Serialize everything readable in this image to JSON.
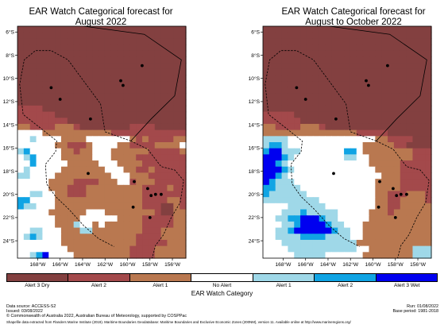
{
  "maps": [
    {
      "title": "EAR Watch Categorical forecast for\nAugust 2022",
      "grid": [
        "999999999999999999999999999",
        "999999999999999999999999999",
        "999999999999999999999999999",
        "999999999999999999999999999",
        "999999999999999999999999999",
        "999999999999999999999999999",
        "999999999999999999999999999",
        "999999999999999999999999999",
        "999999999999999999999999999",
        "999999999999999999999999999",
        "999999999999999999999999999",
        "999999999999999999999999999",
        "999999999999999999999999999",
        "888899999999999999999999999",
        "888888999999999999999999999",
        "888888889999999999999999999",
        "778888777899999999888899999",
        "000077777777777888888888888",
        "001000077770000000787888877",
        "000000778887000077888877770",
        "120000077877000777777888887",
        "012000077777000777788888888",
        "002000007777700077778888888",
        "010000077777770007788788888",
        "110000777777777000777888888",
        "000007777888877700877788888",
        "000007778887777777778888788",
        "001100778887777777778888888",
        "220000777777777777778888778",
        "211000777777777777778889978",
        "000007777770007777777789977",
        "000000777700000077778888877",
        "000000777100707777778888877",
        "001100077711777777778887777",
        "012100077777777777788887777",
        "000000077777777777788888777",
        "000000007777777777888877777",
        "001230000777777777888877777"
      ],
      "dots": [
        {
          "lon": 158.7,
          "lat": 8.9
        },
        {
          "lon": 160.6,
          "lat": 10.2
        },
        {
          "lon": 160.4,
          "lat": 10.6
        },
        {
          "lon": 166.8,
          "lat": 10.8
        },
        {
          "lon": 166.0,
          "lat": 11.8
        },
        {
          "lon": 163.3,
          "lat": 13.5
        },
        {
          "lon": 163.5,
          "lat": 18.2
        },
        {
          "lon": 159.4,
          "lat": 18.9
        },
        {
          "lon": 158.2,
          "lat": 19.5
        },
        {
          "lon": 157.9,
          "lat": 20.1
        },
        {
          "lon": 157.5,
          "lat": 20.0
        },
        {
          "lon": 157.0,
          "lat": 20.0
        },
        {
          "lon": 159.5,
          "lat": 21.1
        },
        {
          "lon": 158.0,
          "lat": 22.0
        }
      ]
    },
    {
      "title": "EAR Watch Categorical forecast for\nAugust to October 2022",
      "grid": [
        "999999999999999999999999999",
        "999999999999999999999999999",
        "999999999999999999999999999",
        "999999999999999999999999999",
        "999999999999999999999999999",
        "999999999999999999999999999",
        "999999999999999999999999999",
        "999999999999999999999999999",
        "999999999999999999999999999",
        "999999999999999999999999999",
        "999999999999999999999999999",
        "999999999999999999999999999",
        "999999999999999999999999999",
        "999999999999999999999999999",
        "888889999999999999999999999",
        "888888999999999999999999999",
        "778888777899999999999999999",
        "777777777777777888889999999",
        "111100000000000000778888999",
        "122100000000000077777889999",
        "233111000000022077777777888",
        "333210000000011007777777888",
        "332100000000000007777788888",
        "333210000000000000777788888",
        "332100000000000000077788888",
        "321110000000000000777788888",
        "221111000000000000777788888",
        "211111100000000000778887778",
        "111111111000000000778877778",
        "000011111100000000778877777",
        "000111211111000007778777777",
        "001122333211000007777777777",
        "000112333321100077777777777",
        "001123333332110077777777777",
        "001111222211110077777777777",
        "000111111111111777777777777",
        "000011111111111007777777111",
        "000001111100000077777777111"
      ],
      "dots": [
        {
          "lon": 158.7,
          "lat": 8.9
        },
        {
          "lon": 160.6,
          "lat": 10.2
        },
        {
          "lon": 160.4,
          "lat": 10.6
        },
        {
          "lon": 166.8,
          "lat": 10.8
        },
        {
          "lon": 166.0,
          "lat": 11.8
        },
        {
          "lon": 163.3,
          "lat": 13.5
        },
        {
          "lon": 163.5,
          "lat": 18.2
        },
        {
          "lon": 159.4,
          "lat": 18.9
        },
        {
          "lon": 158.2,
          "lat": 19.5
        },
        {
          "lon": 157.9,
          "lat": 20.1
        },
        {
          "lon": 157.5,
          "lat": 20.0
        },
        {
          "lon": 157.0,
          "lat": 20.0
        },
        {
          "lon": 159.5,
          "lat": 21.1
        },
        {
          "lon": 158.0,
          "lat": 22.0
        }
      ]
    }
  ],
  "axes": {
    "lat_ticks": [
      "6°S",
      "8°S",
      "10°S",
      "12°S",
      "14°S",
      "16°S",
      "18°S",
      "20°S",
      "22°S",
      "24°S"
    ],
    "lon_ticks": [
      "168°W",
      "166°W",
      "164°W",
      "162°W",
      "160°W",
      "158°W",
      "156°W"
    ]
  },
  "categories": [
    {
      "code": "0",
      "label": "No Alert",
      "color": "#ffffff"
    },
    {
      "code": "1",
      "label": "Alert 1",
      "color": "#9fd8e8"
    },
    {
      "code": "2",
      "label": "Alert 2",
      "color": "#10a4e4"
    },
    {
      "code": "3",
      "label": "Alert 3 Wet",
      "color": "#0000f0"
    },
    {
      "code": "7",
      "label": "Alert 1",
      "color": "#b97850"
    },
    {
      "code": "8",
      "label": "Alert 2",
      "color": "#a3494b"
    },
    {
      "code": "9",
      "label": "Alert 3 Dry",
      "color": "#834040"
    }
  ],
  "legend": {
    "title": "EAR Watch Category",
    "items": [
      {
        "label": "Alert 3 Dry",
        "color": "#834040"
      },
      {
        "label": "Alert 2",
        "color": "#a3494b"
      },
      {
        "label": "Alert 1",
        "color": "#b97850"
      },
      {
        "label": "No Alert",
        "color": "#ffffff"
      },
      {
        "label": "Alert 1",
        "color": "#9fd8e8"
      },
      {
        "label": "Alert 2",
        "color": "#10a4e4"
      },
      {
        "label": "Alert 3 Wet",
        "color": "#0000f0"
      }
    ]
  },
  "footer": {
    "data_source": "Data source: ACCESS-S2",
    "issued": "Issued: 03/08/2022",
    "run": "Run: 01/08/2022",
    "base_period": "Base period: 1981-2018",
    "copyright": "© Commonwealth of Australia 2022, Australian Bureau of Meteorology, supported by COSPPac",
    "shapefile": "Shapefile data extracted from Flanders Marine Institute (2019). Maritime Boundaries Geodatabase: Maritime Boundaries and Exclusive Economic Zones (200NM), version 11. Available online at http://www.marineregions.org/"
  }
}
